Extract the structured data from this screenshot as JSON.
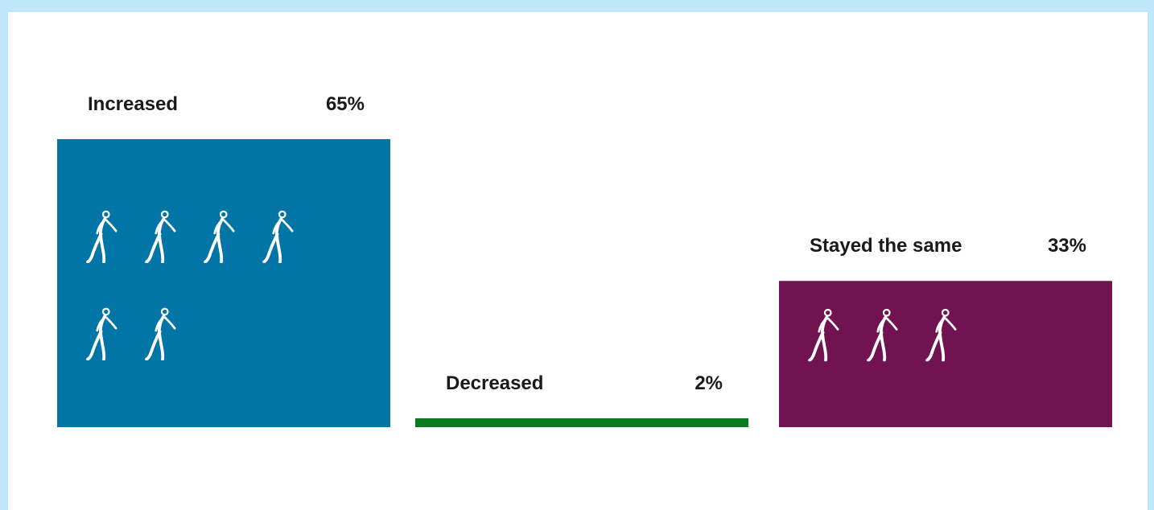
{
  "chart_data": {
    "type": "bar",
    "title": "",
    "categories": [
      "Increased",
      "Decreased",
      "Stayed the same"
    ],
    "values": [
      65,
      2,
      33
    ],
    "value_labels": [
      "65%",
      "2%",
      "33%"
    ],
    "unit": "%",
    "colors": [
      "#0075a6",
      "#0a7a1e",
      "#711251"
    ],
    "icon": "walking-person-icon",
    "icon_color": "#ffffff",
    "people_per_icon_percent": 10,
    "xlabel": "",
    "ylabel": "",
    "ylim": [
      0,
      100
    ],
    "grid": false,
    "legend": "none"
  }
}
